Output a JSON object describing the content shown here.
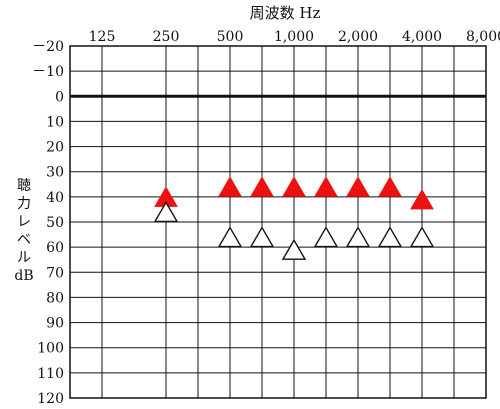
{
  "chart_data": {
    "type": "scatter",
    "title": "周波数 Hz",
    "xlabel": "",
    "ylabel": "聴力レベル dB",
    "ylabel_lines": [
      "聴",
      "力",
      "レ",
      "ベ",
      "ル",
      "dB"
    ],
    "x_ticks": [
      {
        "hz": 125,
        "label": "125"
      },
      {
        "hz": 250,
        "label": "250"
      },
      {
        "hz": 500,
        "label": "500"
      },
      {
        "hz": 1000,
        "label": "1,000"
      },
      {
        "hz": 2000,
        "label": "2,000"
      },
      {
        "hz": 4000,
        "label": "4,000"
      },
      {
        "hz": 8000,
        "label": "8,000"
      }
    ],
    "x_scale": "log2",
    "xlim": [
      125,
      8000
    ],
    "y_ticks": [
      "－20",
      "－10",
      "0",
      "10",
      "20",
      "30",
      "40",
      "50",
      "60",
      "70",
      "80",
      "90",
      "100",
      "110",
      "120"
    ],
    "y_tick_values": [
      -20,
      -10,
      0,
      10,
      20,
      30,
      40,
      50,
      60,
      70,
      80,
      90,
      100,
      110,
      120
    ],
    "ylim": [
      -20,
      120
    ],
    "y_inverted": true,
    "grid": true,
    "reference_line_db": 0,
    "series": [
      {
        "marker": "filled-triangle",
        "color": "#ee1111",
        "points": [
          {
            "hz": 250,
            "db": 40
          },
          {
            "hz": 500,
            "db": 36
          },
          {
            "hz": 707,
            "db": 36
          },
          {
            "hz": 1000,
            "db": 36
          },
          {
            "hz": 1414,
            "db": 36
          },
          {
            "hz": 2000,
            "db": 36
          },
          {
            "hz": 2828,
            "db": 36
          },
          {
            "hz": 4000,
            "db": 41
          }
        ]
      },
      {
        "marker": "open-triangle",
        "color": "#111111",
        "points": [
          {
            "hz": 250,
            "db": 46
          },
          {
            "hz": 500,
            "db": 56
          },
          {
            "hz": 707,
            "db": 56
          },
          {
            "hz": 1000,
            "db": 61
          },
          {
            "hz": 1414,
            "db": 56
          },
          {
            "hz": 2000,
            "db": 56
          },
          {
            "hz": 2828,
            "db": 56
          },
          {
            "hz": 4000,
            "db": 56
          }
        ]
      }
    ]
  }
}
